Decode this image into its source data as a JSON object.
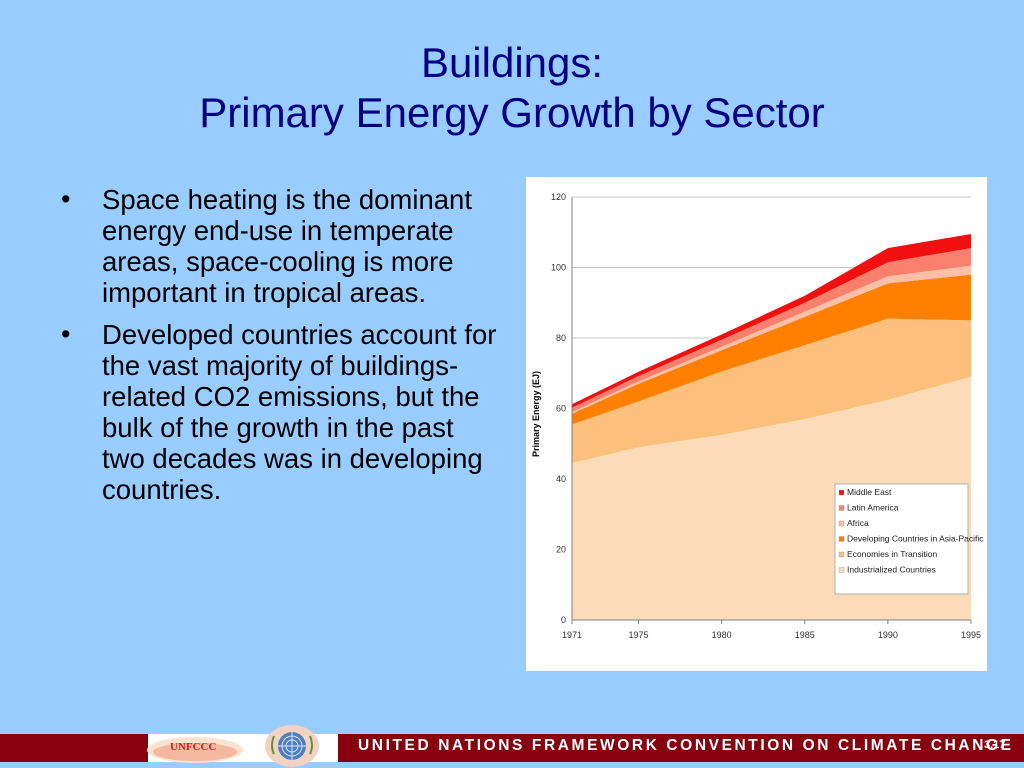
{
  "slide": {
    "title_line1": "Buildings:",
    "title_line2": "Primary Energy Growth by Sector",
    "bullets": [
      "Space heating is the dominant energy end-use in temperate areas, space-cooling is more important in tropical areas.",
      "Developed countries account for the vast majority of buildings-related CO2 emissions, but the bulk of the growth in the past two decades was in developing countries."
    ],
    "bullet_glyph": "•"
  },
  "chart_data": {
    "type": "area",
    "stacked": true,
    "title": "",
    "xlabel": "",
    "ylabel": "Primary  Energy  (EJ)",
    "x": [
      1971,
      1975,
      1980,
      1985,
      1990,
      1995
    ],
    "x_ticks": [
      "1971",
      "1975",
      "1980",
      "1985",
      "1990",
      "1995"
    ],
    "ylim": [
      0,
      120
    ],
    "y_ticks": [
      "0",
      "20",
      "40",
      "60",
      "80",
      "100",
      "120"
    ],
    "grid": true,
    "legend_position": "bottom-right",
    "series": [
      {
        "name": "Industrialized Countries",
        "color": "#fcdcb8",
        "values": [
          44.5,
          49,
          52.5,
          57,
          62.5,
          69
        ]
      },
      {
        "name": "Economies in Transition",
        "color": "#fcc07c",
        "values": [
          11,
          13,
          18,
          21,
          23,
          16
        ]
      },
      {
        "name": "Developing Countries in Asia-Pacific",
        "color": "#ff8000",
        "values": [
          3,
          5,
          6,
          8,
          10,
          13
        ]
      },
      {
        "name": "Africa",
        "color": "#fcc0a8",
        "values": [
          0.5,
          0.7,
          1,
          1.5,
          2,
          2.5
        ]
      },
      {
        "name": "Latin America",
        "color": "#f8806c",
        "values": [
          1.2,
          1.5,
          2,
          2.5,
          4,
          5
        ]
      },
      {
        "name": "Middle East",
        "color": "#f01010",
        "values": [
          1,
          1.2,
          1.5,
          2,
          4,
          4
        ]
      }
    ],
    "legend_order": [
      "Middle East",
      "Latin America",
      "Africa",
      "Developing Countries in Asia-Pacific",
      "Economies in Transition",
      "Industrialized Countries"
    ]
  },
  "footer": {
    "logo_text": "UNFCCC",
    "banner_text": "UNITED NATIONS FRAMEWORK CONVENTION ON CLIMATE CHANGE",
    "slide_number": "3.17",
    "colors": {
      "band": "#880010",
      "text": "#ffffff"
    }
  },
  "icons": {
    "un_emblem": "un-emblem-icon",
    "unfccc_logo": "unfccc-logo-icon"
  }
}
